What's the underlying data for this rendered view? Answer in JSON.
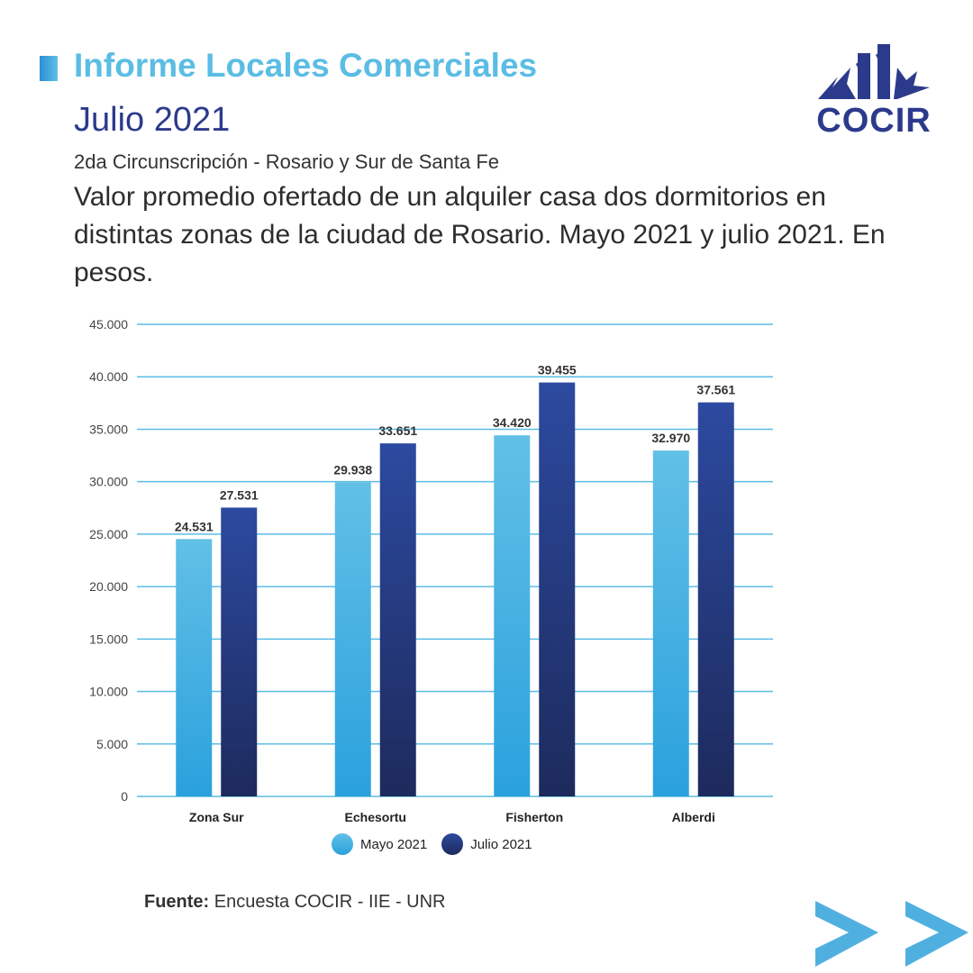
{
  "header": {
    "title": "Informe Locales Comerciales",
    "subtitle": "Julio 2021",
    "region": "2da Circunscripción - Rosario y Sur de Santa Fe"
  },
  "logo": {
    "text": "COCIR"
  },
  "source": {
    "label": "Fuente:",
    "text": "Encuesta COCIR - IIE - UNR"
  },
  "colors": {
    "title": "#5bbde4",
    "subtitle": "#2c3a8c",
    "mayo_top": "#62c0e6",
    "mayo_bottom": "#2aa1dd",
    "julio_top": "#2c4aa0",
    "julio_bottom": "#1d2a5c",
    "grid": "#5bbde4",
    "arrows": "#4fb0e0"
  },
  "icons": {
    "next": "double-chevron-right-icon"
  },
  "chart_data": {
    "type": "bar",
    "title": "Valor promedio ofertado de un alquiler casa dos dormitorios en distintas zonas de la ciudad de Rosario. Mayo 2021 y julio 2021. En pesos.",
    "categories": [
      "Zona Sur",
      "Echesortu",
      "Fisherton",
      "Alberdi"
    ],
    "series": [
      {
        "name": "Mayo 2021",
        "values": [
          24531,
          29938,
          34420,
          32970
        ],
        "labels": [
          "24.531",
          "29.938",
          "34.420",
          "32.970"
        ]
      },
      {
        "name": "Julio 2021",
        "values": [
          27531,
          33651,
          39455,
          37561
        ],
        "labels": [
          "27.531",
          "33.651",
          "39.455",
          "37.561"
        ]
      }
    ],
    "ylim": [
      0,
      45000
    ],
    "yticks": [
      0,
      5000,
      10000,
      15000,
      20000,
      25000,
      30000,
      35000,
      40000,
      45000
    ],
    "ytick_labels": [
      "0",
      "5.000",
      "10.000",
      "15.000",
      "20.000",
      "25.000",
      "30.000",
      "35.000",
      "40.000",
      "45.000"
    ],
    "grid": true,
    "legend": "bottom"
  }
}
